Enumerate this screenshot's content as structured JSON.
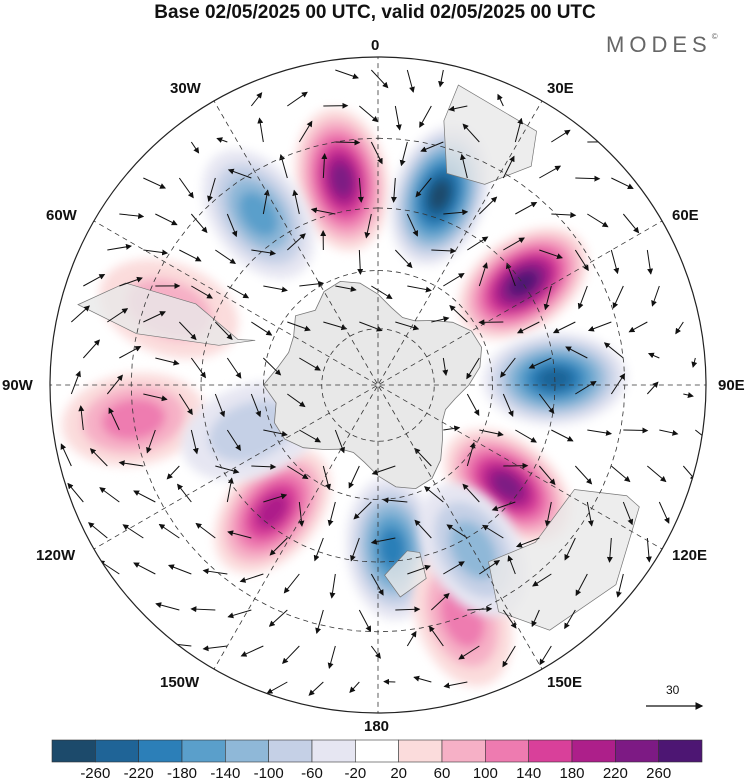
{
  "title": "Base 02/05/2025 00 UTC, valid 02/05/2025 00 UTC",
  "brand": {
    "text": "MODES",
    "mark": "©"
  },
  "longitude_labels": {
    "top": "0",
    "bottom": "180",
    "left": "90W",
    "right": "90E",
    "nw1": "30W",
    "nw2": "60W",
    "ne1": "30E",
    "ne2": "60E",
    "sw1": "120W",
    "sw2": "150W",
    "se1": "120E",
    "se2": "150E"
  },
  "map": {
    "projection": "south-polar-stereographic",
    "field": "geopotential height anomaly with wind vectors",
    "land_color": "#e8e8e8",
    "centers": [
      {
        "lon": -10,
        "lat": -38,
        "value": 220
      },
      {
        "lon": 18,
        "lat": -40,
        "value": -260
      },
      {
        "lon": 55,
        "lat": -45,
        "value": 260
      },
      {
        "lon": 88,
        "lat": -45,
        "value": -250
      },
      {
        "lon": 128,
        "lat": -48,
        "value": 250
      },
      {
        "lon": 175,
        "lat": -48,
        "value": -190
      },
      {
        "lon": -140,
        "lat": -48,
        "value": 190
      },
      {
        "lon": -35,
        "lat": -38,
        "value": -160
      },
      {
        "lon": -98,
        "lat": -30,
        "value": 120
      },
      {
        "lon": -70,
        "lat": -35,
        "value": 60
      },
      {
        "lon": -110,
        "lat": -55,
        "value": -60
      },
      {
        "lon": 160,
        "lat": -30,
        "value": 100
      },
      {
        "lon": 150,
        "lat": -42,
        "value": -120
      }
    ]
  },
  "vector_scale": {
    "label": "30"
  },
  "colorbar": {
    "ticks": [
      "-260",
      "-220",
      "-180",
      "-140",
      "-100",
      "-60",
      "-20",
      "20",
      "60",
      "100",
      "140",
      "180",
      "220",
      "260"
    ],
    "colors": [
      "#1c4a6b",
      "#1f6497",
      "#2c7fb8",
      "#5a9fcb",
      "#8fb8d8",
      "#c5d0e6",
      "#e6e6f2",
      "#ffffff",
      "#fbdcdc",
      "#f6b0c6",
      "#ee7bb0",
      "#d9409a",
      "#ad1f8a",
      "#7d1a84",
      "#4d1673"
    ]
  }
}
